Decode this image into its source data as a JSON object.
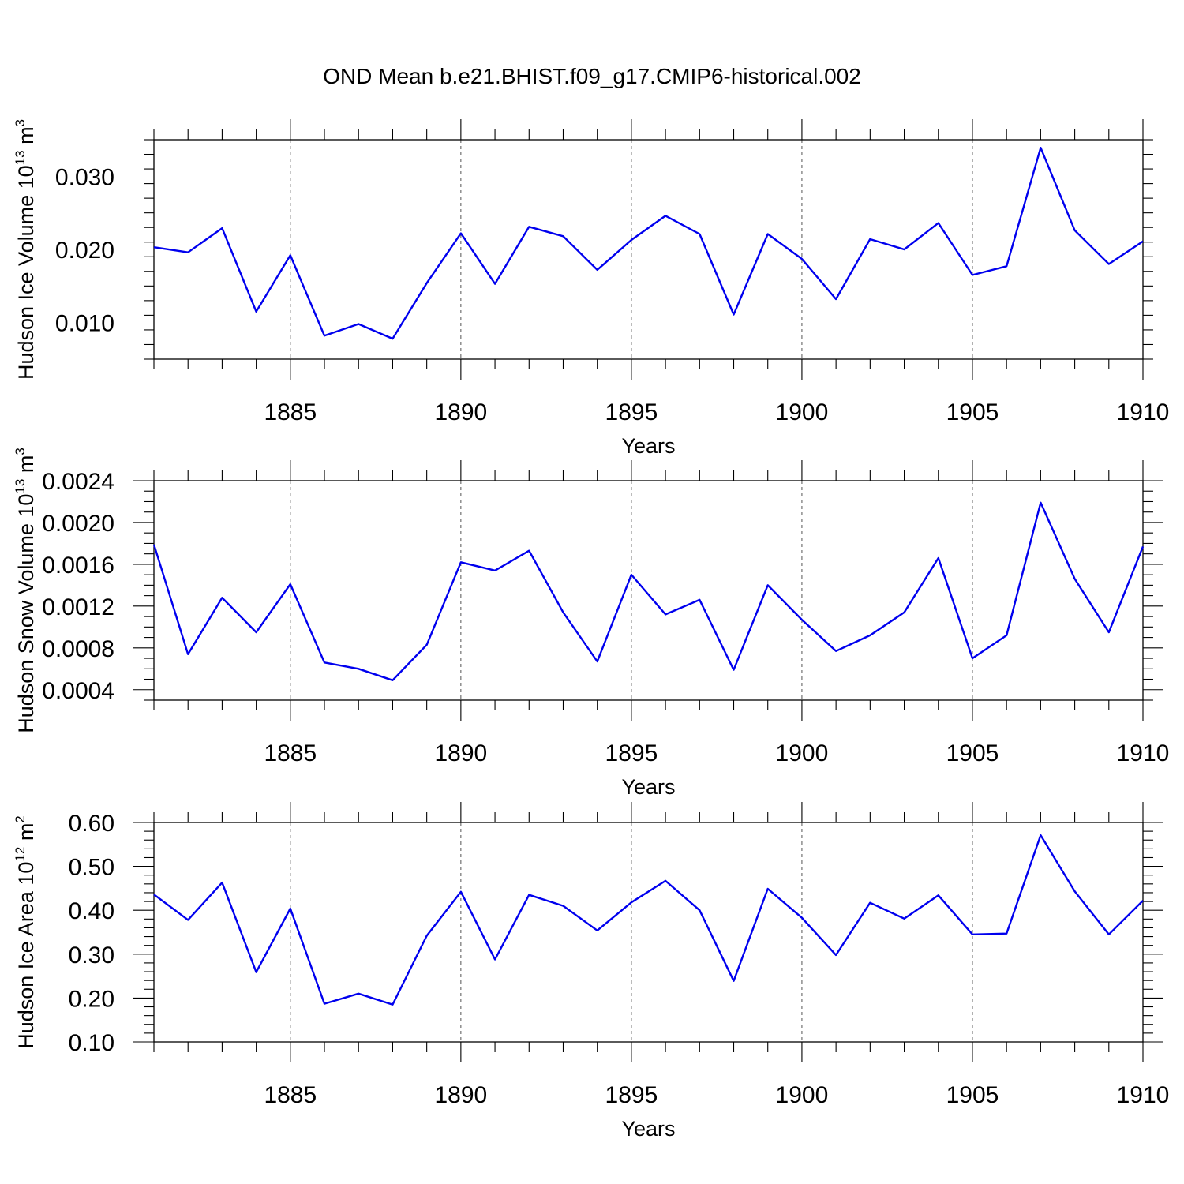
{
  "title": "OND Mean b.e21.BHIST.f09_g17.CMIP6-historical.002",
  "colors": {
    "series": "#0000ee",
    "axis": "#000000",
    "grid": "#555555"
  },
  "chart_data": [
    {
      "type": "line",
      "name": "ice-volume",
      "title": "OND Mean b.e21.BHIST.f09_g17.CMIP6-historical.002",
      "xlabel": "Years",
      "ylabel": "Hudson Ice Volume 10",
      "ylabel_exp": "13",
      "ylabel_unit": " m",
      "ylabel_unit_exp": "3",
      "xlim": [
        1881,
        1910
      ],
      "ylim": [
        0.005,
        0.035
      ],
      "xticks": [
        1885,
        1890,
        1895,
        1900,
        1905,
        1910
      ],
      "yticks": [
        0.01,
        0.02,
        0.03
      ],
      "ytick_labels": [
        "0.010",
        "0.020",
        "0.030"
      ],
      "y_minor_step": 0.002,
      "grid": "x-dashed",
      "x": [
        1881,
        1882,
        1883,
        1884,
        1885,
        1886,
        1887,
        1888,
        1889,
        1890,
        1891,
        1892,
        1893,
        1894,
        1895,
        1896,
        1897,
        1898,
        1899,
        1900,
        1901,
        1902,
        1903,
        1904,
        1905,
        1906,
        1907,
        1908,
        1909,
        1910
      ],
      "values": [
        0.0203,
        0.0196,
        0.0229,
        0.0115,
        0.0192,
        0.0082,
        0.0098,
        0.0078,
        0.0154,
        0.0222,
        0.0153,
        0.0231,
        0.0218,
        0.0172,
        0.0213,
        0.0246,
        0.0221,
        0.0111,
        0.0221,
        0.0187,
        0.0132,
        0.0214,
        0.02,
        0.0236,
        0.0165,
        0.0177,
        0.0339,
        0.0226,
        0.018,
        0.0211
      ]
    },
    {
      "type": "line",
      "name": "snow-volume",
      "xlabel": "Years",
      "ylabel": "Hudson Snow Volume 10",
      "ylabel_exp": "13",
      "ylabel_unit": " m",
      "ylabel_unit_exp": "3",
      "xlim": [
        1881,
        1910
      ],
      "ylim": [
        0.0003,
        0.0024
      ],
      "xticks": [
        1885,
        1890,
        1895,
        1900,
        1905,
        1910
      ],
      "yticks": [
        0.0004,
        0.0008,
        0.0012,
        0.0016,
        0.002,
        0.0024
      ],
      "ytick_labels": [
        "0.0004",
        "0.0008",
        "0.0012",
        "0.0016",
        "0.0020",
        "0.0024"
      ],
      "y_minor_step": 0.0001,
      "grid": "x-dashed",
      "x": [
        1881,
        1882,
        1883,
        1884,
        1885,
        1886,
        1887,
        1888,
        1889,
        1890,
        1891,
        1892,
        1893,
        1894,
        1895,
        1896,
        1897,
        1898,
        1899,
        1900,
        1901,
        1902,
        1903,
        1904,
        1905,
        1906,
        1907,
        1908,
        1909,
        1910
      ],
      "values": [
        0.00179,
        0.00074,
        0.00128,
        0.00095,
        0.00141,
        0.00066,
        0.0006,
        0.00049,
        0.00083,
        0.00162,
        0.00154,
        0.00173,
        0.00114,
        0.00067,
        0.0015,
        0.00112,
        0.00126,
        0.00059,
        0.0014,
        0.00107,
        0.00077,
        0.00092,
        0.00114,
        0.00166,
        0.0007,
        0.00092,
        0.00219,
        0.00146,
        0.00095,
        0.00177
      ]
    },
    {
      "type": "line",
      "name": "ice-area",
      "xlabel": "Years",
      "ylabel": "Hudson Ice Area 10",
      "ylabel_exp": "12",
      "ylabel_unit": " m",
      "ylabel_unit_exp": "2",
      "xlim": [
        1881,
        1910
      ],
      "ylim": [
        0.1,
        0.6
      ],
      "xticks": [
        1885,
        1890,
        1895,
        1900,
        1905,
        1910
      ],
      "yticks": [
        0.1,
        0.2,
        0.3,
        0.4,
        0.5,
        0.6
      ],
      "ytick_labels": [
        "0.10",
        "0.20",
        "0.30",
        "0.40",
        "0.50",
        "0.60"
      ],
      "y_minor_step": 0.02,
      "grid": "x-dashed",
      "x": [
        1881,
        1882,
        1883,
        1884,
        1885,
        1886,
        1887,
        1888,
        1889,
        1890,
        1891,
        1892,
        1893,
        1894,
        1895,
        1896,
        1897,
        1898,
        1899,
        1900,
        1901,
        1902,
        1903,
        1904,
        1905,
        1906,
        1907,
        1908,
        1909,
        1910
      ],
      "values": [
        0.436,
        0.378,
        0.463,
        0.259,
        0.404,
        0.187,
        0.21,
        0.185,
        0.342,
        0.442,
        0.288,
        0.435,
        0.41,
        0.354,
        0.418,
        0.467,
        0.4,
        0.239,
        0.449,
        0.383,
        0.298,
        0.417,
        0.381,
        0.434,
        0.345,
        0.347,
        0.571,
        0.443,
        0.345,
        0.422
      ]
    }
  ]
}
